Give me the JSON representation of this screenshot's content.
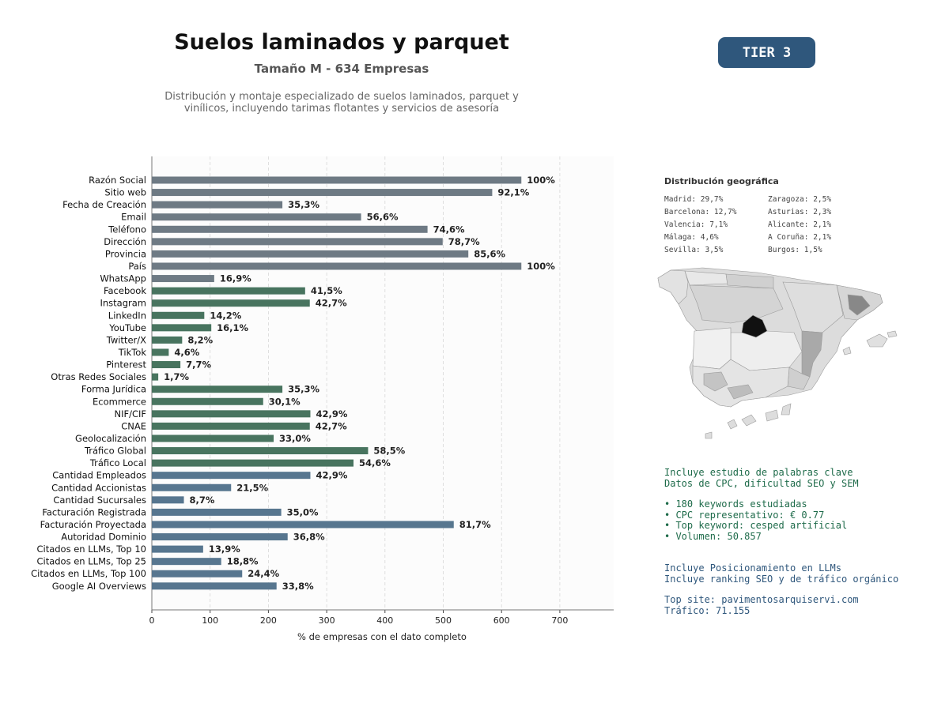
{
  "header": {
    "title": "Suelos laminados y parquet",
    "subtitle": "Tamaño M - 634 Empresas",
    "description_line1": "Distribución y montaje especializado de suelos laminados, parquet y",
    "description_line2": "vinílicos, incluyendo tarimas flotantes y servicios de asesoría",
    "tier": "TIER 3"
  },
  "colors": {
    "gray_bar": "#6e7a84",
    "green_bar": "#48745f",
    "blue_bar": "#57768f",
    "tier_bg": "#2f577c",
    "keyword_text": "#1e6b4a",
    "llm_text": "#2f577c"
  },
  "chart_data": {
    "type": "bar",
    "orientation": "horizontal",
    "xlabel": "% de empresas con el dato completo",
    "xlim": [
      0,
      790
    ],
    "xticks": [
      0,
      100,
      200,
      300,
      400,
      500,
      600,
      700
    ],
    "grid": "vertical dashed",
    "categories": [
      "Razón Social",
      "Sitio web",
      "Fecha de Creación",
      "Email",
      "Teléfono",
      "Dirección",
      "Provincia",
      "País",
      "WhatsApp",
      "Facebook",
      "Instagram",
      "LinkedIn",
      "YouTube",
      "Twitter/X",
      "TikTok",
      "Pinterest",
      "Otras Redes Sociales",
      "Forma Jurídica",
      "Ecommerce",
      "NIF/CIF",
      "CNAE",
      "Geolocalización",
      "Tráfico Global",
      "Tráfico Local",
      "Cantidad Empleados",
      "Cantidad Accionistas",
      "Cantidad Sucursales",
      "Facturación Registrada",
      "Facturación Proyectada",
      "Autoridad Dominio",
      "Citados en LLMs, Top 10",
      "Citados en LLMs, Top 25",
      "Citados en LLMs, Top 100",
      "Google AI Overviews"
    ],
    "values": [
      634,
      584,
      224,
      359,
      473,
      499,
      543,
      634,
      107,
      263,
      271,
      90,
      102,
      52,
      29,
      49,
      11,
      224,
      191,
      272,
      271,
      209,
      371,
      346,
      272,
      136,
      55,
      222,
      518,
      233,
      88,
      119,
      155,
      214
    ],
    "labels": [
      "100%",
      "92,1%",
      "35,3%",
      "56,6%",
      "74,6%",
      "78,7%",
      "85,6%",
      "100%",
      "16,9%",
      "41,5%",
      "42,7%",
      "14,2%",
      "16,1%",
      "8,2%",
      "4,6%",
      "7,7%",
      "1,7%",
      "35,3%",
      "30,1%",
      "42,9%",
      "42,7%",
      "33,0%",
      "58,5%",
      "54,6%",
      "42,9%",
      "21,5%",
      "8,7%",
      "35,0%",
      "81,7%",
      "36,8%",
      "13,9%",
      "18,8%",
      "24,4%",
      "33,8%"
    ],
    "groups": [
      "gray",
      "gray",
      "gray",
      "gray",
      "gray",
      "gray",
      "gray",
      "gray",
      "gray",
      "green",
      "green",
      "green",
      "green",
      "green",
      "green",
      "green",
      "green",
      "green",
      "green",
      "green",
      "green",
      "green",
      "green",
      "green",
      "blue",
      "blue",
      "blue",
      "blue",
      "blue",
      "blue",
      "blue",
      "blue",
      "blue",
      "blue"
    ]
  },
  "geo": {
    "title": "Distribución geográfica",
    "col1": [
      "Madrid: 29,7%",
      "Barcelona: 12,7%",
      "Valencia: 7,1%",
      "Málaga: 4,6%",
      "Sevilla: 3,5%"
    ],
    "col2": [
      "Zaragoza: 2,5%",
      "Asturias: 2,3%",
      "Alicante: 2,1%",
      "A Coruña: 2,1%",
      "Burgos: 1,5%"
    ]
  },
  "keywords": {
    "line1": "Incluye estudio de palabras clave",
    "line2": "Datos de CPC, dificultad SEO y SEM",
    "bullet1": "• 180 keywords estudiadas",
    "bullet2": "• CPC representativo: € 0.77",
    "bullet3": "• Top keyword: cesped artificial",
    "bullet4": "• Volumen: 50.857"
  },
  "llm": {
    "line1": "Incluye Posicionamiento en LLMs",
    "line2": "Incluye ranking SEO y de tráfico orgánico",
    "line3": "Top site: pavimentosarquiservi.com",
    "line4": "Tráfico: 71.155"
  }
}
